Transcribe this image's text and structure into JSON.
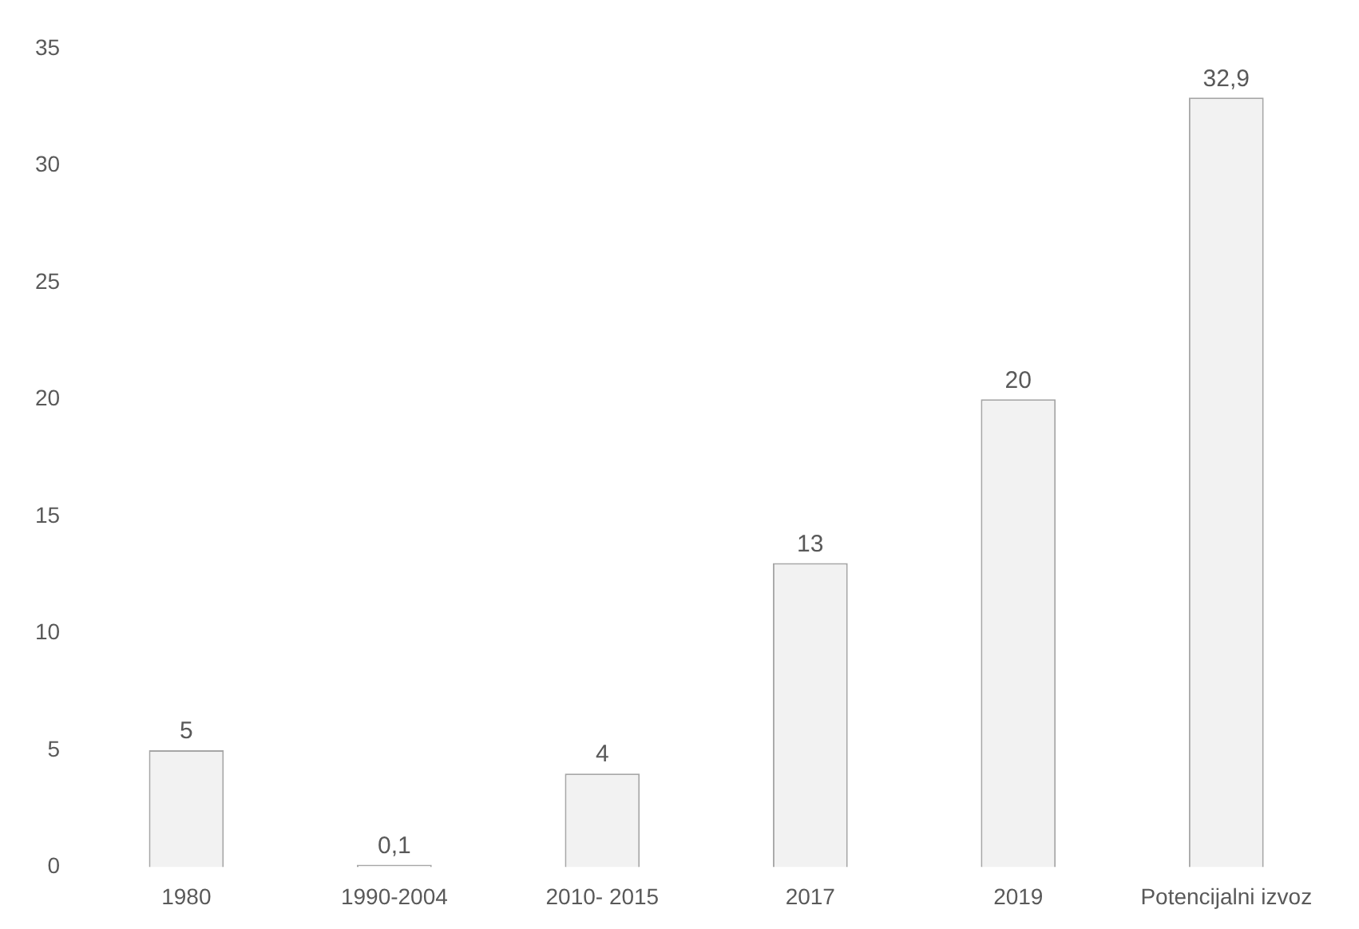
{
  "chart_data": {
    "type": "bar",
    "categories": [
      "1980",
      "1990-2004",
      "2010- 2015",
      "2017",
      "2019",
      "Potencijalni izvoz"
    ],
    "values": [
      5,
      0.1,
      4,
      13,
      20,
      32.9
    ],
    "value_labels": [
      "5",
      "0,1",
      "4",
      "13",
      "20",
      "32,9"
    ],
    "color": "#f2f2f2",
    "ylim": [
      0,
      35
    ],
    "yticks": [
      0,
      5,
      10,
      15,
      20,
      25,
      30,
      35
    ],
    "grid": false,
    "legend": false
  }
}
